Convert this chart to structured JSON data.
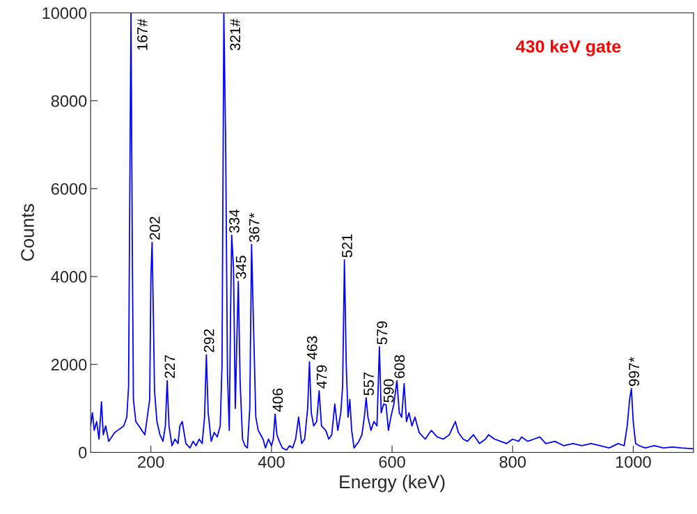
{
  "chart_data": {
    "type": "line",
    "xlabel": "Energy (keV)",
    "ylabel": "Counts",
    "xlim": [
      100,
      1100
    ],
    "ylim": [
      0,
      10000
    ],
    "xticks": [
      200,
      400,
      600,
      800,
      1000
    ],
    "yticks": [
      0,
      2000,
      4000,
      6000,
      8000,
      10000
    ],
    "grid": false,
    "marker": "none",
    "line_style": "solid",
    "series": [
      {
        "color": "#0000ff",
        "x": [
          100,
          103,
          106,
          110,
          114,
          118,
          121,
          125,
          130,
          135,
          140,
          145,
          150,
          155,
          160,
          163,
          165,
          167,
          169,
          171,
          175,
          180,
          185,
          190,
          195,
          198,
          200,
          202,
          204,
          206,
          210,
          215,
          220,
          224,
          227,
          230,
          235,
          240,
          245,
          248,
          252,
          258,
          265,
          270,
          275,
          280,
          285,
          289,
          292,
          295,
          300,
          305,
          310,
          315,
          318,
          321,
          324,
          327,
          330,
          332,
          334,
          337,
          340,
          343,
          345,
          348,
          352,
          356,
          360,
          364,
          367,
          370,
          374,
          378,
          382,
          386,
          390,
          395,
          400,
          403,
          406,
          409,
          413,
          418,
          425,
          430,
          435,
          440,
          445,
          450,
          455,
          460,
          463,
          466,
          470,
          475,
          479,
          483,
          490,
          495,
          500,
          505,
          510,
          515,
          518,
          521,
          524,
          527,
          530,
          533,
          537,
          545,
          550,
          554,
          557,
          560,
          565,
          570,
          575,
          579,
          582,
          586,
          590,
          594,
          598,
          603,
          608,
          612,
          616,
          620,
          624,
          628,
          633,
          638,
          645,
          655,
          665,
          675,
          685,
          695,
          700,
          705,
          710,
          718,
          725,
          735,
          745,
          755,
          760,
          770,
          780,
          790,
          800,
          810,
          815,
          825,
          835,
          845,
          855,
          870,
          885,
          900,
          915,
          930,
          945,
          960,
          975,
          985,
          990,
          994,
          997,
          1000,
          1004,
          1010,
          1020,
          1035,
          1050,
          1065,
          1080,
          1100
        ],
        "values": [
          600,
          900,
          500,
          700,
          300,
          1150,
          400,
          600,
          250,
          350,
          450,
          500,
          550,
          600,
          800,
          1500,
          6000,
          10000,
          5000,
          1200,
          700,
          600,
          500,
          400,
          900,
          1200,
          4000,
          4780,
          3200,
          1400,
          700,
          400,
          250,
          600,
          1630,
          600,
          150,
          300,
          200,
          600,
          700,
          200,
          100,
          250,
          150,
          300,
          200,
          800,
          2220,
          900,
          250,
          450,
          350,
          600,
          2000,
          10000,
          7000,
          1800,
          500,
          3000,
          4940,
          4200,
          1000,
          2800,
          3890,
          1600,
          300,
          150,
          100,
          1000,
          4730,
          3000,
          800,
          500,
          400,
          300,
          100,
          300,
          150,
          300,
          870,
          400,
          250,
          100,
          50,
          150,
          100,
          300,
          800,
          200,
          300,
          1000,
          2060,
          900,
          600,
          700,
          1400,
          600,
          500,
          300,
          400,
          1100,
          500,
          900,
          1500,
          4380,
          2000,
          800,
          1200,
          500,
          100,
          250,
          400,
          800,
          1240,
          800,
          500,
          700,
          600,
          2400,
          900,
          1100,
          1080,
          500,
          800,
          1100,
          1630,
          900,
          800,
          1560,
          700,
          900,
          600,
          800,
          450,
          300,
          500,
          350,
          300,
          400,
          550,
          700,
          450,
          300,
          250,
          400,
          200,
          300,
          400,
          300,
          250,
          200,
          300,
          250,
          350,
          250,
          300,
          350,
          200,
          250,
          150,
          200,
          150,
          200,
          150,
          100,
          200,
          150,
          600,
          1200,
          1450,
          700,
          200,
          150,
          100,
          150,
          100,
          120,
          100,
          80
        ]
      }
    ],
    "annotations": [
      {
        "text": "167#",
        "x": 167,
        "y": 10000
      },
      {
        "text": "202",
        "x": 202,
        "y": 4780
      },
      {
        "text": "227",
        "x": 227,
        "y": 1630
      },
      {
        "text": "292",
        "x": 292,
        "y": 2220
      },
      {
        "text": "321#",
        "x": 321,
        "y": 10000
      },
      {
        "text": "334",
        "x": 334,
        "y": 4940
      },
      {
        "text": "345",
        "x": 345,
        "y": 3890
      },
      {
        "text": "367*",
        "x": 367,
        "y": 4730
      },
      {
        "text": "406",
        "x": 406,
        "y": 870
      },
      {
        "text": "463",
        "x": 463,
        "y": 2060
      },
      {
        "text": "479",
        "x": 479,
        "y": 1400
      },
      {
        "text": "521",
        "x": 521,
        "y": 4380
      },
      {
        "text": "557",
        "x": 557,
        "y": 1240
      },
      {
        "text": "579",
        "x": 579,
        "y": 2400
      },
      {
        "text": "590",
        "x": 590,
        "y": 1080
      },
      {
        "text": "608",
        "x": 608,
        "y": 1630
      },
      {
        "text": "997*",
        "x": 997,
        "y": 1450
      },
      "430 keV gate"
    ]
  }
}
